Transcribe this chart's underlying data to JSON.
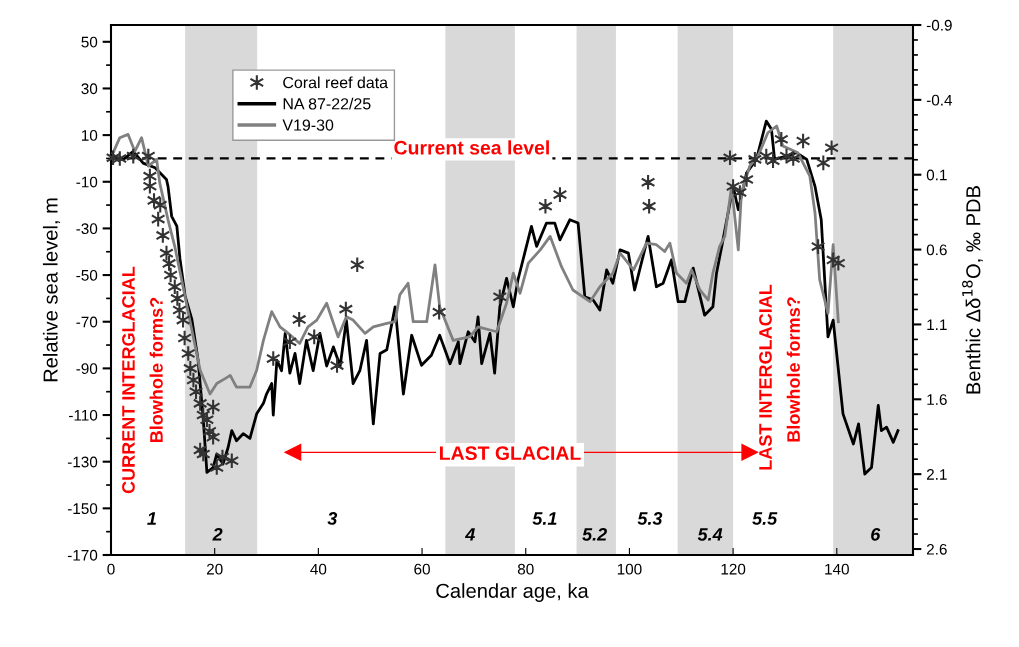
{
  "chart_data": {
    "type": "line",
    "xlabel": "Calendar age, ka",
    "ylabel": "Relative sea level, m",
    "y2label": "Benthic Δδ$^{18}$O, ‰ PDB",
    "xlim": [
      0,
      154.7
    ],
    "xticks": [
      0,
      20,
      40,
      60,
      80,
      100,
      120,
      140
    ],
    "ylim": [
      -170,
      57.2
    ],
    "yticks": [
      -170,
      -150,
      -130,
      -110,
      -90,
      -70,
      -50,
      -30,
      -10,
      10,
      30,
      50
    ],
    "y2lim": [
      2.64,
      -0.9
    ],
    "y2ticks": [
      -0.9,
      -0.4,
      0.1,
      0.6,
      1.1,
      1.6,
      2.1,
      2.6
    ],
    "grid": false,
    "legend": "top left",
    "bands": [
      {
        "axis": "x",
        "from": 14.3,
        "to": 28.2,
        "color": "#d9d9d9"
      },
      {
        "axis": "x",
        "from": 64.5,
        "to": 77.9,
        "color": "#d9d9d9"
      },
      {
        "axis": "x",
        "from": 89.8,
        "to": 97.4,
        "color": "#d9d9d9"
      },
      {
        "axis": "x",
        "from": 109.3,
        "to": 120,
        "color": "#d9d9d9"
      },
      {
        "axis": "x",
        "from": 139.3,
        "to": 154.7,
        "color": "#d9d9d9"
      }
    ],
    "ref_lines": [
      {
        "axis": "y",
        "value": 0,
        "label": "Current sea level",
        "color": "#000000",
        "line_style": "dashed"
      }
    ],
    "series": [
      {
        "name": "Coral reef data",
        "type": "scatter",
        "marker": "cross",
        "color": "#333333",
        "sizes": [
          1,
          1,
          1,
          1,
          1,
          1,
          1,
          1,
          1,
          1,
          1,
          1,
          1,
          1,
          1,
          1,
          1,
          1,
          1,
          1,
          1,
          1,
          1,
          1,
          1,
          1,
          1,
          1,
          1,
          1,
          1,
          1,
          1,
          1,
          1,
          1,
          1,
          1,
          1,
          1,
          1,
          1,
          1,
          1,
          1,
          1,
          1,
          1,
          1,
          1,
          1,
          1,
          1,
          1,
          1,
          1,
          1,
          1,
          1,
          1,
          1,
          1
        ],
        "x": [
          0.4,
          1.7,
          4.3,
          7.2,
          7.5,
          7.5,
          8.3,
          9.1,
          9.5,
          10,
          10.7,
          11.2,
          11.5,
          12.3,
          12.8,
          13.2,
          13.9,
          14.2,
          14.9,
          15.3,
          15.9,
          16.4,
          17.2,
          17.8,
          18.5,
          19,
          19.7,
          19.7,
          17.2,
          17.8,
          20.4,
          21.5,
          23.3,
          31.3,
          34.5,
          36.3,
          39.2,
          43.6,
          45.3,
          47.5,
          63.3,
          75,
          83.8,
          86.6,
          103.6,
          103.8,
          119.4,
          120,
          121.3,
          122.6,
          124.2,
          126.4,
          127.7,
          129.3,
          130.3,
          131.6,
          133.5,
          137.4,
          139,
          136.4,
          139.3,
          140.3
        ],
        "values": [
          0.3,
          0,
          1,
          1,
          -7.6,
          -11.9,
          -18,
          -26,
          -20,
          -33,
          -40.6,
          -45,
          -50,
          -55,
          -60,
          -65,
          -69.3,
          -77,
          -83.6,
          -90,
          -95,
          -100,
          -105,
          -110,
          -112,
          -117,
          -119.5,
          -106.6,
          -125,
          -126.7,
          -132.5,
          -128,
          -129.6,
          -85.8,
          -78.6,
          -69,
          -76.5,
          -88.8,
          -64.6,
          -45.6,
          -65.9,
          -59.3,
          -20.5,
          -15.5,
          -10.2,
          -20.5,
          0.3,
          -12,
          -14.6,
          -9,
          -0.4,
          1,
          -1,
          8.2,
          1,
          0,
          7.5,
          -1.9,
          4.6,
          -37.8,
          -43.5,
          -44.9
        ]
      },
      {
        "name": "NA 87-22/25",
        "color": "#000000",
        "x": [
          0,
          2.4,
          4.3,
          6.2,
          8.5,
          10.7,
          11,
          11.7,
          12.7,
          13.3,
          14.3,
          15.6,
          16.8,
          17.8,
          18.5,
          19.7,
          20.4,
          21.6,
          22.6,
          23.3,
          24.2,
          25.5,
          26.8,
          28.1,
          29.4,
          30,
          31,
          31.3,
          32,
          32.9,
          33.6,
          34.5,
          35.5,
          36.4,
          37.7,
          39,
          40.3,
          41.6,
          42.9,
          44.2,
          45.4,
          46.7,
          48,
          49.3,
          50.6,
          51.9,
          53.2,
          54.8,
          56.4,
          58,
          59.9,
          61.8,
          63.4,
          65.4,
          67,
          67.3,
          68.9,
          70.2,
          70.8,
          71.5,
          73.1,
          74,
          75,
          76.3,
          77.6,
          78.5,
          79.8,
          81.1,
          82.1,
          84,
          85.6,
          86.6,
          88.5,
          90.1,
          91.4,
          93,
          94.3,
          95.6,
          96.8,
          98.2,
          99.8,
          101,
          103.6,
          105.2,
          106.5,
          108.1,
          109.4,
          110.7,
          112.3,
          114.5,
          116.1,
          116.8,
          117.8,
          120,
          121,
          122.6,
          124.5,
          126.4,
          127.4,
          128,
          130.3,
          132.2,
          134.2,
          135.8,
          137,
          138.3,
          139.3,
          141.2,
          143.2,
          144.2,
          145.4,
          146.7,
          148,
          148.6,
          149.6,
          150.9,
          151.8
        ],
        "values": [
          0.7,
          -0.4,
          3,
          -2,
          -4,
          -9,
          -12,
          -24.8,
          -29,
          -43,
          -59,
          -69,
          -86.5,
          -112,
          -134.6,
          -132.5,
          -126.7,
          -131,
          -123.8,
          -116.7,
          -121,
          -118,
          -120,
          -109.5,
          -105,
          -101,
          -96.5,
          -110,
          -86.5,
          -91,
          -75,
          -92,
          -83.6,
          -96.5,
          -78,
          -91,
          -75,
          -89,
          -80.8,
          -89,
          -69.3,
          -96.5,
          -91,
          -78,
          -113.8,
          -83.6,
          -82,
          -63.6,
          -101,
          -75.8,
          -88.7,
          -84.4,
          -75.8,
          -88,
          -78.6,
          -88,
          -74.3,
          -78.6,
          -67.9,
          -88,
          -75,
          -92,
          -63.6,
          -51.4,
          -63.6,
          -52,
          -40.6,
          -29.1,
          -37.7,
          -27.7,
          -27.7,
          -34.9,
          -26.3,
          -27.7,
          -59.3,
          -60.7,
          -65,
          -47.8,
          -53.5,
          -39.2,
          -40.6,
          -56.4,
          -33.4,
          -55,
          -53.5,
          -43.5,
          -61.4,
          -61.4,
          -47,
          -67.2,
          -63.6,
          -49.2,
          -37.8,
          -12,
          -22,
          -6.2,
          -0.4,
          16,
          12.5,
          -0.4,
          1,
          2.5,
          -0.4,
          -12,
          -26.3,
          -76.5,
          -69.3,
          -109.5,
          -122.4,
          -113.8,
          -135.3,
          -132.5,
          -105.9,
          -116.7,
          -115.2,
          -121.7,
          -116.7
        ]
      },
      {
        "name": "V19-30",
        "color": "#808080",
        "x": [
          0.4,
          1.7,
          3.3,
          4.6,
          5.9,
          7.2,
          8.8,
          9.4,
          11,
          12.3,
          13.9,
          15.2,
          17.2,
          19.1,
          20.4,
          22,
          23,
          24.2,
          26.8,
          28.1,
          29.4,
          31,
          32.6,
          34.2,
          36.4,
          38,
          39.7,
          41.6,
          43.8,
          45.4,
          46.7,
          49,
          50.6,
          53.2,
          54.8,
          55.7,
          57.3,
          58.3,
          60.9,
          62.5,
          63.4,
          66,
          69.2,
          70.8,
          74.4,
          76.3,
          77.6,
          78.9,
          80.5,
          82.8,
          84.7,
          86.9,
          89.1,
          92.4,
          94.3,
          96.8,
          98.2,
          100.8,
          103.3,
          105.2,
          106.8,
          107.8,
          109.1,
          111,
          112,
          113.6,
          115.2,
          116.1,
          117.4,
          118.4,
          119.7,
          121,
          121.6,
          123.2,
          124.8,
          126.7,
          128.4,
          129.6,
          132.5,
          134.8,
          135.8,
          136.7,
          138.3,
          139.3,
          140.3
        ],
        "values": [
          2.4,
          8.9,
          10.3,
          3,
          8.9,
          -3.3,
          -0.4,
          -10.5,
          -26.3,
          -37.7,
          -55,
          -69.3,
          -90.8,
          -101,
          -96.5,
          -94.4,
          -93,
          -98,
          -98,
          -90.8,
          -78,
          -65.7,
          -72.2,
          -75,
          -79.3,
          -72.2,
          -69.3,
          -62.1,
          -76.5,
          -67.9,
          -69.3,
          -75,
          -72.2,
          -70.7,
          -70,
          -58.5,
          -53.5,
          -70,
          -70,
          -45.6,
          -63.6,
          -78,
          -76.5,
          -72.2,
          -74.3,
          -62.1,
          -49.2,
          -57.8,
          -44.9,
          -39.2,
          -33.4,
          -46.4,
          -56.4,
          -61.4,
          -55,
          -49.2,
          -40.6,
          -47.8,
          -36.3,
          -37,
          -39.9,
          -36.3,
          -49.2,
          -53.5,
          -47.8,
          -56.4,
          -60.7,
          -49.2,
          -37.7,
          -33.4,
          -12,
          -39.2,
          -14.8,
          -3.3,
          1,
          11,
          13.9,
          5.3,
          2.4,
          -7.6,
          -23.4,
          -52,
          -66.4,
          -37,
          -70
        ]
      },
      {
        "marker": "triangle",
        "color": "#ff0000",
        "x": [
          35.1,
          123.2
        ],
        "values": [
          -126,
          -126
        ]
      }
    ],
    "annotations": [
      "LAST GLACIAL",
      "CURRENT INTERGLACIAL",
      "Blowhole forms?",
      "LAST INTERGLACIAL",
      "Blowhole forms?",
      "1",
      "2",
      "3",
      "4",
      "5.1",
      "5.2",
      "5.3",
      "5.4",
      "5.5",
      "6"
    ]
  }
}
